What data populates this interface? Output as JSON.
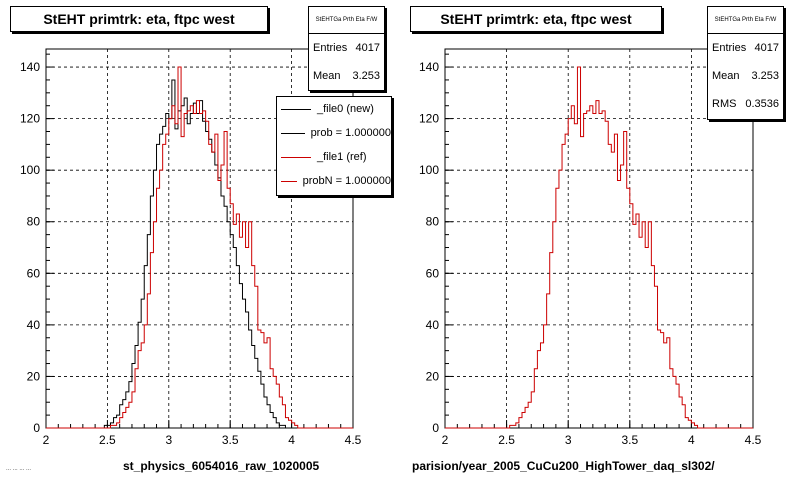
{
  "footer": "... ... ... ...",
  "chart_data": [
    {
      "type": "bar",
      "title": "StEHT primtrk: eta, ftpc west",
      "xlabel": "st_physics_6054016_raw_1020005",
      "xlim": [
        2,
        4.5
      ],
      "ylim": [
        0,
        147
      ],
      "x_ticks": [
        "2",
        "2.5",
        "3",
        "3.5",
        "4",
        "4.5"
      ],
      "y_ticks": [
        "0",
        "20",
        "40",
        "60",
        "80",
        "100",
        "120",
        "140"
      ],
      "grid": true,
      "bin_width": 0.025,
      "series": [
        {
          "name": "_file0 (new)",
          "color": "#000000",
          "bins_start": 2.0,
          "values": [
            0,
            0,
            0,
            0,
            0,
            0,
            0,
            0,
            0,
            0,
            0,
            0,
            0,
            0,
            0,
            0,
            0,
            0,
            0,
            1,
            1,
            2,
            4,
            5,
            9,
            11,
            14,
            18,
            25,
            32,
            41,
            50,
            63,
            75,
            90,
            100,
            110,
            114,
            117,
            122,
            120,
            135,
            116,
            123,
            125,
            128,
            118,
            122,
            126,
            122,
            127,
            119,
            115,
            112,
            107,
            102,
            97,
            90,
            86,
            80,
            75,
            70,
            63,
            56,
            50,
            45,
            38,
            32,
            27,
            22,
            17,
            12,
            9,
            6,
            4,
            2,
            1,
            1,
            0,
            0,
            0,
            0,
            0,
            0,
            0,
            0,
            0,
            0,
            0,
            0,
            0,
            0,
            0,
            0,
            0,
            0,
            0,
            0,
            0,
            0
          ]
        },
        {
          "name": "_file1 (ref)",
          "color": "#cc0000",
          "bins_start": 2.0,
          "values": [
            0,
            0,
            0,
            0,
            0,
            0,
            0,
            0,
            0,
            0,
            0,
            0,
            0,
            0,
            0,
            0,
            0,
            0,
            0,
            0,
            0,
            1,
            1,
            2,
            4,
            6,
            8,
            10,
            14,
            23,
            30,
            33,
            40,
            52,
            68,
            80,
            93,
            100,
            110,
            114,
            120,
            125,
            118,
            140,
            113,
            122,
            123,
            125,
            122,
            127,
            122,
            123,
            119,
            110,
            107,
            114,
            96,
            102,
            115,
            93,
            87,
            79,
            83,
            74,
            80,
            70,
            80,
            63,
            55,
            38,
            37,
            33,
            35,
            23,
            20,
            17,
            12,
            9,
            4,
            3,
            2,
            1,
            0,
            0,
            0,
            0,
            0,
            0,
            0,
            0,
            0,
            0,
            0,
            0,
            0,
            0,
            0,
            0,
            0,
            0
          ]
        }
      ],
      "stats": {
        "header": "StEHTGa Prth Eta F/W",
        "entries_label": "Entries",
        "entries": "4017",
        "mean_label": "Mean",
        "mean": "3.253"
      },
      "legend": [
        {
          "label": "_file0 (new)",
          "color": "#000000"
        },
        {
          "label": "prob = 1.000000",
          "color": "#000000"
        },
        {
          "label": "_file1 (ref)",
          "color": "#cc0000"
        },
        {
          "label": "probN = 1.000000",
          "color": "#cc0000"
        }
      ]
    },
    {
      "type": "bar",
      "title": "StEHT primtrk: eta, ftpc west",
      "xlabel": "parision/year_2005_CuCu200_HighTower_daq_sl302/",
      "xlim": [
        2,
        4.5
      ],
      "ylim": [
        0,
        147
      ],
      "x_ticks": [
        "2",
        "2.5",
        "3",
        "3.5",
        "4",
        "4.5"
      ],
      "y_ticks": [
        "0",
        "20",
        "40",
        "60",
        "80",
        "100",
        "120",
        "140"
      ],
      "grid": true,
      "bin_width": 0.025,
      "series": [
        {
          "name": "",
          "color": "#cc0000",
          "bins_start": 2.0,
          "values": [
            0,
            0,
            0,
            0,
            0,
            0,
            0,
            0,
            0,
            0,
            0,
            0,
            0,
            0,
            0,
            0,
            0,
            0,
            0,
            0,
            0,
            1,
            1,
            2,
            4,
            6,
            8,
            10,
            14,
            23,
            30,
            33,
            40,
            52,
            68,
            80,
            93,
            100,
            110,
            114,
            120,
            125,
            118,
            140,
            113,
            122,
            123,
            125,
            122,
            127,
            122,
            123,
            119,
            110,
            107,
            114,
            96,
            102,
            115,
            93,
            87,
            79,
            83,
            74,
            80,
            70,
            80,
            63,
            55,
            38,
            37,
            33,
            35,
            23,
            20,
            17,
            12,
            9,
            4,
            3,
            2,
            1,
            0,
            0,
            0,
            0,
            0,
            0,
            0,
            0,
            0,
            0,
            0,
            0,
            0,
            0,
            0,
            0,
            0,
            0
          ]
        }
      ],
      "stats": {
        "header": "StEHTGa Prth Eta F/W",
        "entries_label": "Entries",
        "entries": "4017",
        "mean_label": "Mean",
        "mean": "3.253",
        "rms_label": "RMS",
        "rms": "0.3536"
      }
    }
  ]
}
